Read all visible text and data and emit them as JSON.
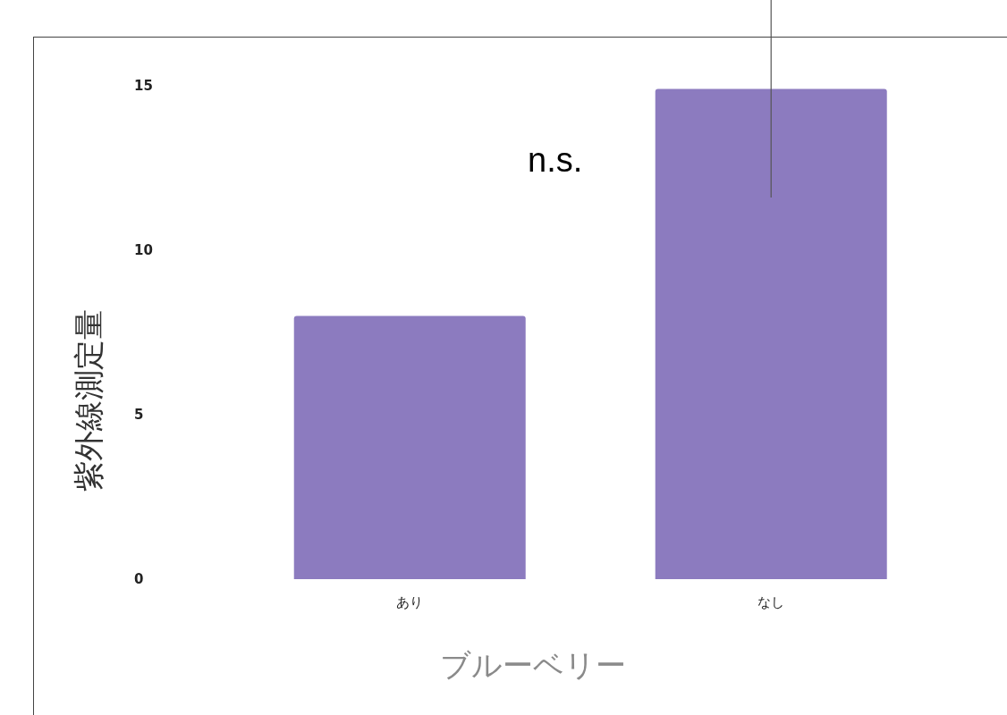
{
  "chart_data": {
    "type": "bar",
    "xlabel": "ブルーベリー",
    "ylabel": "紫外線測定量",
    "categories": [
      "あり",
      "なし"
    ],
    "values": [
      8.0,
      14.9
    ],
    "errors": [
      null,
      [
        11.6,
        17.6
      ]
    ],
    "color": "#8c7bbf",
    "ylim": [
      0,
      17.6
    ],
    "yticks": [
      0,
      5,
      10,
      15
    ],
    "annotations": [
      "n.s."
    ]
  }
}
